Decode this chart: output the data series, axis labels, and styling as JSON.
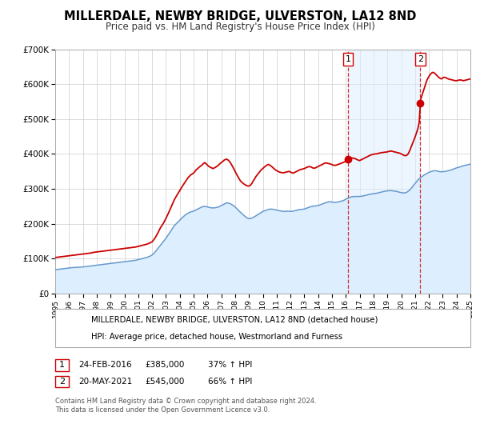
{
  "title": "MILLERDALE, NEWBY BRIDGE, ULVERSTON, LA12 8ND",
  "subtitle": "Price paid vs. HM Land Registry's House Price Index (HPI)",
  "title_fontsize": 10.5,
  "subtitle_fontsize": 8.5,
  "xlim": [
    1995,
    2025
  ],
  "ylim": [
    0,
    700000
  ],
  "yticks": [
    0,
    100000,
    200000,
    300000,
    400000,
    500000,
    600000,
    700000
  ],
  "ytick_labels": [
    "£0",
    "£100K",
    "£200K",
    "£300K",
    "£400K",
    "£500K",
    "£600K",
    "£700K"
  ],
  "xtick_labels": [
    "1995",
    "1996",
    "1997",
    "1998",
    "1999",
    "2000",
    "2001",
    "2002",
    "2003",
    "2004",
    "2005",
    "2006",
    "2007",
    "2008",
    "2009",
    "2010",
    "2011",
    "2012",
    "2013",
    "2014",
    "2015",
    "2016",
    "2017",
    "2018",
    "2019",
    "2020",
    "2021",
    "2022",
    "2023",
    "2024",
    "2025"
  ],
  "red_line_color": "#cc0000",
  "blue_line_color": "#6699cc",
  "fill_color": "#ddeeff",
  "vfill_color": "#ddeeff",
  "grid_color": "#cccccc",
  "marker1_date": 2016.15,
  "marker1_price": 385000,
  "marker2_date": 2021.38,
  "marker2_price": 545000,
  "vline1_x": 2016.15,
  "vline2_x": 2021.38,
  "legend_line1": "MILLERDALE, NEWBY BRIDGE, ULVERSTON, LA12 8ND (detached house)",
  "legend_line2": "HPI: Average price, detached house, Westmorland and Furness",
  "table_row1": [
    "1",
    "24-FEB-2016",
    "£385,000",
    "37% ↑ HPI"
  ],
  "table_row2": [
    "2",
    "20-MAY-2021",
    "£545,000",
    "66% ↑ HPI"
  ],
  "footnote1": "Contains HM Land Registry data © Crown copyright and database right 2024.",
  "footnote2": "This data is licensed under the Open Government Licence v3.0.",
  "red_hpi_data": [
    [
      1995.0,
      103000
    ],
    [
      1995.2,
      104000
    ],
    [
      1995.4,
      105000
    ],
    [
      1995.6,
      106000
    ],
    [
      1995.8,
      107000
    ],
    [
      1996.0,
      108000
    ],
    [
      1996.2,
      109000
    ],
    [
      1996.4,
      110000
    ],
    [
      1996.6,
      111000
    ],
    [
      1996.8,
      112000
    ],
    [
      1997.0,
      113000
    ],
    [
      1997.2,
      114000
    ],
    [
      1997.4,
      115000
    ],
    [
      1997.6,
      116000
    ],
    [
      1997.8,
      118000
    ],
    [
      1998.0,
      119000
    ],
    [
      1998.2,
      120000
    ],
    [
      1998.4,
      121000
    ],
    [
      1998.6,
      122000
    ],
    [
      1998.8,
      123000
    ],
    [
      1999.0,
      124000
    ],
    [
      1999.2,
      125000
    ],
    [
      1999.4,
      126000
    ],
    [
      1999.6,
      127000
    ],
    [
      1999.8,
      128000
    ],
    [
      2000.0,
      129000
    ],
    [
      2000.2,
      130000
    ],
    [
      2000.4,
      131000
    ],
    [
      2000.6,
      132000
    ],
    [
      2000.8,
      133000
    ],
    [
      2001.0,
      135000
    ],
    [
      2001.2,
      137000
    ],
    [
      2001.4,
      139000
    ],
    [
      2001.6,
      141000
    ],
    [
      2001.8,
      144000
    ],
    [
      2002.0,
      148000
    ],
    [
      2002.2,
      158000
    ],
    [
      2002.4,
      172000
    ],
    [
      2002.6,
      188000
    ],
    [
      2002.8,
      200000
    ],
    [
      2003.0,
      215000
    ],
    [
      2003.2,
      232000
    ],
    [
      2003.4,
      250000
    ],
    [
      2003.6,
      268000
    ],
    [
      2003.8,
      282000
    ],
    [
      2004.0,
      295000
    ],
    [
      2004.2,
      308000
    ],
    [
      2004.4,
      320000
    ],
    [
      2004.6,
      332000
    ],
    [
      2004.8,
      340000
    ],
    [
      2005.0,
      345000
    ],
    [
      2005.1,
      350000
    ],
    [
      2005.2,
      355000
    ],
    [
      2005.3,
      358000
    ],
    [
      2005.4,
      362000
    ],
    [
      2005.5,
      365000
    ],
    [
      2005.6,
      368000
    ],
    [
      2005.7,
      372000
    ],
    [
      2005.8,
      375000
    ],
    [
      2005.9,
      372000
    ],
    [
      2006.0,
      368000
    ],
    [
      2006.1,
      364000
    ],
    [
      2006.2,
      362000
    ],
    [
      2006.3,
      360000
    ],
    [
      2006.4,
      358000
    ],
    [
      2006.5,
      360000
    ],
    [
      2006.6,
      362000
    ],
    [
      2006.7,
      365000
    ],
    [
      2006.8,
      368000
    ],
    [
      2006.9,
      372000
    ],
    [
      2007.0,
      375000
    ],
    [
      2007.1,
      378000
    ],
    [
      2007.2,
      382000
    ],
    [
      2007.3,
      384000
    ],
    [
      2007.4,
      385000
    ],
    [
      2007.5,
      382000
    ],
    [
      2007.6,
      378000
    ],
    [
      2007.7,
      372000
    ],
    [
      2007.8,
      365000
    ],
    [
      2007.9,
      358000
    ],
    [
      2008.0,
      350000
    ],
    [
      2008.1,
      342000
    ],
    [
      2008.2,
      335000
    ],
    [
      2008.3,
      328000
    ],
    [
      2008.4,
      322000
    ],
    [
      2008.5,
      318000
    ],
    [
      2008.6,
      315000
    ],
    [
      2008.7,
      312000
    ],
    [
      2008.8,
      310000
    ],
    [
      2008.9,
      308000
    ],
    [
      2009.0,
      308000
    ],
    [
      2009.1,
      310000
    ],
    [
      2009.2,
      315000
    ],
    [
      2009.3,
      322000
    ],
    [
      2009.4,
      328000
    ],
    [
      2009.5,
      335000
    ],
    [
      2009.6,
      340000
    ],
    [
      2009.7,
      345000
    ],
    [
      2009.8,
      350000
    ],
    [
      2009.9,
      355000
    ],
    [
      2010.0,
      358000
    ],
    [
      2010.1,
      362000
    ],
    [
      2010.2,
      365000
    ],
    [
      2010.3,
      368000
    ],
    [
      2010.4,
      370000
    ],
    [
      2010.5,
      368000
    ],
    [
      2010.6,
      365000
    ],
    [
      2010.7,
      362000
    ],
    [
      2010.8,
      358000
    ],
    [
      2010.9,
      355000
    ],
    [
      2011.0,
      352000
    ],
    [
      2011.1,
      350000
    ],
    [
      2011.2,
      348000
    ],
    [
      2011.3,
      347000
    ],
    [
      2011.4,
      346000
    ],
    [
      2011.5,
      346000
    ],
    [
      2011.6,
      347000
    ],
    [
      2011.7,
      348000
    ],
    [
      2011.8,
      349000
    ],
    [
      2011.9,
      350000
    ],
    [
      2012.0,
      348000
    ],
    [
      2012.1,
      346000
    ],
    [
      2012.2,
      345000
    ],
    [
      2012.3,
      347000
    ],
    [
      2012.4,
      349000
    ],
    [
      2012.5,
      351000
    ],
    [
      2012.6,
      353000
    ],
    [
      2012.7,
      355000
    ],
    [
      2012.8,
      356000
    ],
    [
      2012.9,
      357000
    ],
    [
      2013.0,
      358000
    ],
    [
      2013.1,
      360000
    ],
    [
      2013.2,
      362000
    ],
    [
      2013.3,
      363000
    ],
    [
      2013.4,
      364000
    ],
    [
      2013.5,
      362000
    ],
    [
      2013.6,
      360000
    ],
    [
      2013.7,
      359000
    ],
    [
      2013.8,
      360000
    ],
    [
      2013.9,
      362000
    ],
    [
      2014.0,
      364000
    ],
    [
      2014.1,
      366000
    ],
    [
      2014.2,
      368000
    ],
    [
      2014.3,
      370000
    ],
    [
      2014.4,
      372000
    ],
    [
      2014.5,
      374000
    ],
    [
      2014.6,
      374000
    ],
    [
      2014.7,
      373000
    ],
    [
      2014.8,
      372000
    ],
    [
      2014.9,
      371000
    ],
    [
      2015.0,
      369000
    ],
    [
      2015.1,
      368000
    ],
    [
      2015.2,
      367000
    ],
    [
      2015.3,
      368000
    ],
    [
      2015.4,
      369000
    ],
    [
      2015.5,
      371000
    ],
    [
      2015.6,
      372000
    ],
    [
      2015.7,
      374000
    ],
    [
      2015.8,
      375000
    ],
    [
      2015.9,
      377000
    ],
    [
      2016.0,
      380000
    ],
    [
      2016.1,
      382000
    ],
    [
      2016.15,
      385000
    ],
    [
      2016.2,
      386000
    ],
    [
      2016.3,
      388000
    ],
    [
      2016.4,
      389000
    ],
    [
      2016.5,
      388000
    ],
    [
      2016.6,
      387000
    ],
    [
      2016.7,
      386000
    ],
    [
      2016.8,
      384000
    ],
    [
      2016.9,
      382000
    ],
    [
      2017.0,
      381000
    ],
    [
      2017.1,
      383000
    ],
    [
      2017.2,
      385000
    ],
    [
      2017.3,
      387000
    ],
    [
      2017.4,
      389000
    ],
    [
      2017.5,
      391000
    ],
    [
      2017.6,
      393000
    ],
    [
      2017.7,
      395000
    ],
    [
      2017.8,
      397000
    ],
    [
      2017.9,
      398000
    ],
    [
      2018.0,
      399000
    ],
    [
      2018.1,
      400000
    ],
    [
      2018.2,
      400000
    ],
    [
      2018.3,
      401000
    ],
    [
      2018.4,
      402000
    ],
    [
      2018.5,
      403000
    ],
    [
      2018.6,
      404000
    ],
    [
      2018.7,
      404000
    ],
    [
      2018.8,
      405000
    ],
    [
      2018.9,
      405000
    ],
    [
      2019.0,
      406000
    ],
    [
      2019.1,
      407000
    ],
    [
      2019.2,
      408000
    ],
    [
      2019.3,
      408000
    ],
    [
      2019.4,
      407000
    ],
    [
      2019.5,
      406000
    ],
    [
      2019.6,
      405000
    ],
    [
      2019.7,
      404000
    ],
    [
      2019.8,
      403000
    ],
    [
      2019.9,
      402000
    ],
    [
      2020.0,
      400000
    ],
    [
      2020.1,
      398000
    ],
    [
      2020.2,
      396000
    ],
    [
      2020.3,
      395000
    ],
    [
      2020.4,
      396000
    ],
    [
      2020.5,
      400000
    ],
    [
      2020.6,
      408000
    ],
    [
      2020.7,
      418000
    ],
    [
      2020.8,
      428000
    ],
    [
      2020.9,
      438000
    ],
    [
      2021.0,
      448000
    ],
    [
      2021.1,
      460000
    ],
    [
      2021.2,
      472000
    ],
    [
      2021.3,
      490000
    ],
    [
      2021.38,
      545000
    ],
    [
      2021.4,
      555000
    ],
    [
      2021.5,
      568000
    ],
    [
      2021.6,
      580000
    ],
    [
      2021.7,
      592000
    ],
    [
      2021.8,
      605000
    ],
    [
      2021.9,
      615000
    ],
    [
      2022.0,
      622000
    ],
    [
      2022.1,
      628000
    ],
    [
      2022.2,
      632000
    ],
    [
      2022.3,
      634000
    ],
    [
      2022.4,
      632000
    ],
    [
      2022.5,
      628000
    ],
    [
      2022.6,
      624000
    ],
    [
      2022.7,
      620000
    ],
    [
      2022.8,
      617000
    ],
    [
      2022.9,
      615000
    ],
    [
      2023.0,
      618000
    ],
    [
      2023.1,
      620000
    ],
    [
      2023.2,
      619000
    ],
    [
      2023.3,
      617000
    ],
    [
      2023.4,
      615000
    ],
    [
      2023.5,
      614000
    ],
    [
      2023.6,
      613000
    ],
    [
      2023.7,
      612000
    ],
    [
      2023.8,
      611000
    ],
    [
      2023.9,
      610000
    ],
    [
      2024.0,
      610000
    ],
    [
      2024.1,
      611000
    ],
    [
      2024.2,
      612000
    ],
    [
      2024.3,
      612000
    ],
    [
      2024.4,
      611000
    ],
    [
      2024.5,
      610000
    ],
    [
      2024.6,
      611000
    ],
    [
      2024.7,
      612000
    ],
    [
      2024.8,
      613000
    ],
    [
      2024.9,
      614000
    ],
    [
      2025.0,
      615000
    ]
  ],
  "blue_hpi_data": [
    [
      1995.0,
      68000
    ],
    [
      1995.2,
      69000
    ],
    [
      1995.4,
      70000
    ],
    [
      1995.6,
      71000
    ],
    [
      1995.8,
      72000
    ],
    [
      1996.0,
      73000
    ],
    [
      1996.2,
      74000
    ],
    [
      1996.4,
      74500
    ],
    [
      1996.6,
      75000
    ],
    [
      1996.8,
      75500
    ],
    [
      1997.0,
      76000
    ],
    [
      1997.2,
      77000
    ],
    [
      1997.4,
      78000
    ],
    [
      1997.6,
      79000
    ],
    [
      1997.8,
      80000
    ],
    [
      1998.0,
      81000
    ],
    [
      1998.2,
      82000
    ],
    [
      1998.4,
      83000
    ],
    [
      1998.6,
      84000
    ],
    [
      1998.8,
      85000
    ],
    [
      1999.0,
      86000
    ],
    [
      1999.2,
      87000
    ],
    [
      1999.4,
      88000
    ],
    [
      1999.6,
      89000
    ],
    [
      1999.8,
      90000
    ],
    [
      2000.0,
      91000
    ],
    [
      2000.2,
      92000
    ],
    [
      2000.4,
      93000
    ],
    [
      2000.6,
      94000
    ],
    [
      2000.8,
      95000
    ],
    [
      2001.0,
      97000
    ],
    [
      2001.2,
      99000
    ],
    [
      2001.4,
      101000
    ],
    [
      2001.6,
      103000
    ],
    [
      2001.8,
      106000
    ],
    [
      2002.0,
      110000
    ],
    [
      2002.2,
      118000
    ],
    [
      2002.4,
      128000
    ],
    [
      2002.6,
      138000
    ],
    [
      2002.8,
      148000
    ],
    [
      2003.0,
      158000
    ],
    [
      2003.2,
      170000
    ],
    [
      2003.4,
      182000
    ],
    [
      2003.6,
      194000
    ],
    [
      2003.8,
      202000
    ],
    [
      2004.0,
      210000
    ],
    [
      2004.2,
      218000
    ],
    [
      2004.4,
      225000
    ],
    [
      2004.6,
      230000
    ],
    [
      2004.8,
      234000
    ],
    [
      2005.0,
      236000
    ],
    [
      2005.2,
      240000
    ],
    [
      2005.4,
      244000
    ],
    [
      2005.6,
      248000
    ],
    [
      2005.8,
      250000
    ],
    [
      2006.0,
      248000
    ],
    [
      2006.2,
      246000
    ],
    [
      2006.4,
      245000
    ],
    [
      2006.6,
      246000
    ],
    [
      2006.8,
      248000
    ],
    [
      2007.0,
      252000
    ],
    [
      2007.2,
      256000
    ],
    [
      2007.4,
      260000
    ],
    [
      2007.6,
      258000
    ],
    [
      2007.8,
      254000
    ],
    [
      2008.0,
      248000
    ],
    [
      2008.2,
      240000
    ],
    [
      2008.4,
      232000
    ],
    [
      2008.6,
      225000
    ],
    [
      2008.8,
      218000
    ],
    [
      2009.0,
      214000
    ],
    [
      2009.2,
      216000
    ],
    [
      2009.4,
      220000
    ],
    [
      2009.6,
      225000
    ],
    [
      2009.8,
      230000
    ],
    [
      2010.0,
      235000
    ],
    [
      2010.2,
      238000
    ],
    [
      2010.4,
      241000
    ],
    [
      2010.6,
      242000
    ],
    [
      2010.8,
      241000
    ],
    [
      2011.0,
      239000
    ],
    [
      2011.2,
      237000
    ],
    [
      2011.4,
      236000
    ],
    [
      2011.6,
      235000
    ],
    [
      2011.8,
      236000
    ],
    [
      2012.0,
      235000
    ],
    [
      2012.2,
      236000
    ],
    [
      2012.4,
      238000
    ],
    [
      2012.6,
      240000
    ],
    [
      2012.8,
      241000
    ],
    [
      2013.0,
      242000
    ],
    [
      2013.2,
      245000
    ],
    [
      2013.4,
      248000
    ],
    [
      2013.6,
      250000
    ],
    [
      2013.8,
      251000
    ],
    [
      2014.0,
      252000
    ],
    [
      2014.2,
      255000
    ],
    [
      2014.4,
      258000
    ],
    [
      2014.6,
      261000
    ],
    [
      2014.8,
      263000
    ],
    [
      2015.0,
      262000
    ],
    [
      2015.2,
      261000
    ],
    [
      2015.4,
      262000
    ],
    [
      2015.6,
      264000
    ],
    [
      2015.8,
      266000
    ],
    [
      2016.0,
      270000
    ],
    [
      2016.2,
      274000
    ],
    [
      2016.4,
      277000
    ],
    [
      2016.6,
      278000
    ],
    [
      2016.8,
      278000
    ],
    [
      2017.0,
      278000
    ],
    [
      2017.2,
      279000
    ],
    [
      2017.4,
      281000
    ],
    [
      2017.6,
      283000
    ],
    [
      2017.8,
      285000
    ],
    [
      2018.0,
      286000
    ],
    [
      2018.2,
      287000
    ],
    [
      2018.4,
      289000
    ],
    [
      2018.6,
      291000
    ],
    [
      2018.8,
      293000
    ],
    [
      2019.0,
      294000
    ],
    [
      2019.2,
      295000
    ],
    [
      2019.4,
      294000
    ],
    [
      2019.6,
      293000
    ],
    [
      2019.8,
      291000
    ],
    [
      2020.0,
      289000
    ],
    [
      2020.2,
      288000
    ],
    [
      2020.4,
      290000
    ],
    [
      2020.6,
      296000
    ],
    [
      2020.8,
      305000
    ],
    [
      2021.0,
      315000
    ],
    [
      2021.2,
      325000
    ],
    [
      2021.4,
      332000
    ],
    [
      2021.6,
      338000
    ],
    [
      2021.8,
      343000
    ],
    [
      2022.0,
      347000
    ],
    [
      2022.2,
      350000
    ],
    [
      2022.4,
      352000
    ],
    [
      2022.6,
      351000
    ],
    [
      2022.8,
      349000
    ],
    [
      2023.0,
      349000
    ],
    [
      2023.2,
      350000
    ],
    [
      2023.4,
      352000
    ],
    [
      2023.6,
      354000
    ],
    [
      2023.8,
      357000
    ],
    [
      2024.0,
      360000
    ],
    [
      2024.2,
      362000
    ],
    [
      2024.4,
      365000
    ],
    [
      2024.6,
      367000
    ],
    [
      2024.8,
      369000
    ],
    [
      2025.0,
      371000
    ]
  ]
}
